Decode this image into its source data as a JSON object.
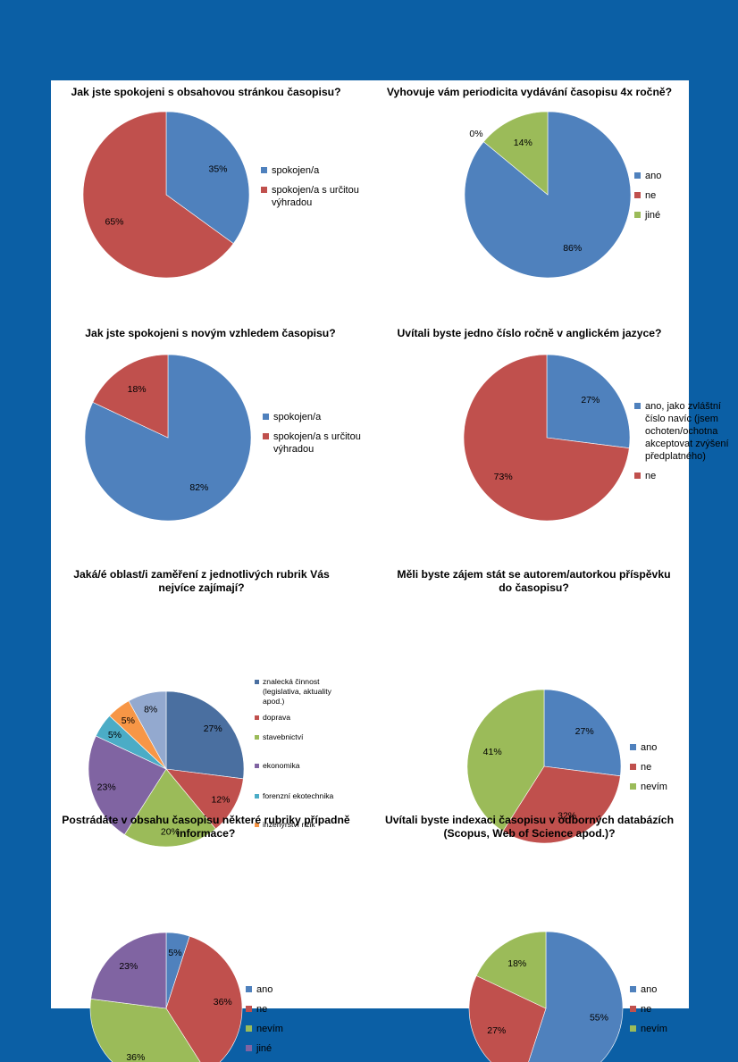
{
  "colors": {
    "page_background": "#0b5fa5",
    "blue": "#4f81bd",
    "red": "#c0504d",
    "green": "#9bbb59",
    "purple": "#8064a2",
    "teal": "#4bacc6",
    "orange": "#f79646",
    "darkblue": "#4a6fa0",
    "lightblue": "#93a9cf"
  },
  "chart_data": [
    {
      "type": "pie",
      "title": "Jak jste spokojeni s obsahovou stránkou časopisu?",
      "legend_position": "right",
      "slices": [
        {
          "name": "spokojen/a",
          "value": 35,
          "label": "35%",
          "color": "#4f81bd"
        },
        {
          "name": "spokojen/a s určitou výhradou",
          "value": 65,
          "label": "65%",
          "color": "#c0504d"
        }
      ]
    },
    {
      "type": "pie",
      "title": "Vyhovuje vám periodicita vydávání časopisu 4x ročně?",
      "legend_position": "right",
      "slices": [
        {
          "name": "ano",
          "value": 86,
          "label": "86%",
          "color": "#4f81bd"
        },
        {
          "name": "ne",
          "value": 0,
          "label": "0%",
          "color": "#c0504d"
        },
        {
          "name": "jiné",
          "value": 14,
          "label": "14%",
          "color": "#9bbb59"
        }
      ]
    },
    {
      "type": "pie",
      "title": "Jak jste spokojeni s novým vzhledem časopisu?",
      "legend_position": "right",
      "slices": [
        {
          "name": "spokojen/a",
          "value": 82,
          "label": "82%",
          "color": "#4f81bd"
        },
        {
          "name": "spokojen/a s určitou výhradou",
          "value": 18,
          "label": "18%",
          "color": "#c0504d"
        }
      ]
    },
    {
      "type": "pie",
      "title": "Uvítali byste jedno číslo ročně v anglickém jazyce?",
      "legend_position": "right",
      "slices": [
        {
          "name": "ano, jako zvláštní číslo navíc (jsem ochoten/ochotna akceptovat zvýšení předplatného)",
          "value": 27,
          "label": "27%",
          "color": "#4f81bd"
        },
        {
          "name": "ne",
          "value": 73,
          "label": "73%",
          "color": "#c0504d"
        }
      ]
    },
    {
      "type": "pie",
      "title": "Jaká/é oblast/i zaměření z jednotlivých rubrik Vás nejvíce zajímají?",
      "legend_position": "right",
      "slices": [
        {
          "name": "znalecká činnost (legislativa, aktuality apod.)",
          "value": 27,
          "label": "27%",
          "color": "#4a6fa0"
        },
        {
          "name": "doprava",
          "value": 12,
          "label": "12%",
          "color": "#c0504d"
        },
        {
          "name": "stavebnictví",
          "value": 20,
          "label": "20%",
          "color": "#9bbb59"
        },
        {
          "name": "ekonomika",
          "value": 23,
          "label": "23%",
          "color": "#8064a2"
        },
        {
          "name": "forenzní ekotechnika",
          "value": 5,
          "label": "5%",
          "color": "#4bacc6"
        },
        {
          "name": "inženýrství rizik",
          "value": 5,
          "label": "5%",
          "color": "#f79646"
        },
        {
          "name": "",
          "value": 8,
          "label": "8%",
          "color": "#93a9cf"
        }
      ]
    },
    {
      "type": "pie",
      "title": "Měli byste zájem stát se autorem/autorkou příspěvku do časopisu?",
      "legend_position": "right",
      "slices": [
        {
          "name": "ano",
          "value": 27,
          "label": "27%",
          "color": "#4f81bd"
        },
        {
          "name": "ne",
          "value": 32,
          "label": "32%",
          "color": "#c0504d"
        },
        {
          "name": "nevím",
          "value": 41,
          "label": "41%",
          "color": "#9bbb59"
        }
      ]
    },
    {
      "type": "pie",
      "title": "Postrádáte v obsahu časopisu některé rubriky případně informace?",
      "legend_position": "right",
      "slices": [
        {
          "name": "ano",
          "value": 5,
          "label": "5%",
          "color": "#4f81bd"
        },
        {
          "name": "ne",
          "value": 36,
          "label": "36%",
          "color": "#c0504d"
        },
        {
          "name": "nevím",
          "value": 36,
          "label": "36%",
          "color": "#9bbb59"
        },
        {
          "name": "jiné",
          "value": 23,
          "label": "23%",
          "color": "#8064a2"
        }
      ]
    },
    {
      "type": "pie",
      "title": "Uvítali byste indexaci časopisu v odborných databázích (Scopus, Web of Science apod.)?",
      "legend_position": "right",
      "slices": [
        {
          "name": "ano",
          "value": 55,
          "label": "55%",
          "color": "#4f81bd"
        },
        {
          "name": "ne",
          "value": 27,
          "label": "27%",
          "color": "#c0504d"
        },
        {
          "name": "nevím",
          "value": 18,
          "label": "18%",
          "color": "#9bbb59"
        }
      ]
    }
  ]
}
